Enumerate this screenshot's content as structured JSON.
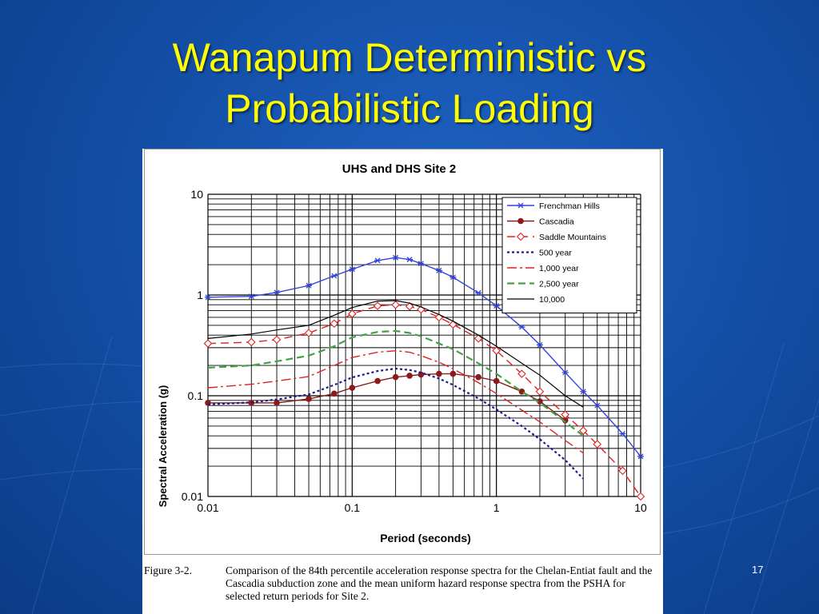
{
  "slide": {
    "title_line1": "Wanapum Deterministic vs",
    "title_line2": "Probabilistic Loading",
    "page_number": "17"
  },
  "figure": {
    "label": "Figure 3-2.",
    "caption": "Comparison of the 84th percentile acceleration response spectra for the Chelan-Entiat fault and the Cascadia subduction zone and the mean uniform hazard response spectra from the PSHA for selected return periods for Site 2."
  },
  "colors": {
    "background": "#1450a8",
    "title": "#ffff00"
  },
  "chart_data": {
    "type": "line",
    "title": "UHS and DHS Site 2",
    "xlabel": "Period (seconds)",
    "ylabel": "Spectral Acceleration (g)",
    "xscale": "log",
    "yscale": "log",
    "xlim": [
      0.01,
      10
    ],
    "ylim": [
      0.01,
      10
    ],
    "xticks": [
      "0.01",
      "0.1",
      "1",
      "10"
    ],
    "yticks": [
      "0.01",
      "0.1",
      "1",
      "10"
    ],
    "grid": true,
    "legend_position": "top-right",
    "series": [
      {
        "name": "Frenchman Hills",
        "color": "#3344dd",
        "dash": "",
        "marker": "star",
        "width": 1.4,
        "x": [
          0.01,
          0.02,
          0.03,
          0.05,
          0.075,
          0.1,
          0.15,
          0.2,
          0.25,
          0.3,
          0.4,
          0.5,
          0.75,
          1,
          1.5,
          2,
          3,
          4,
          5,
          7.5,
          10
        ],
        "y": [
          0.95,
          0.97,
          1.06,
          1.24,
          1.55,
          1.8,
          2.2,
          2.35,
          2.25,
          2.05,
          1.75,
          1.5,
          1.05,
          0.78,
          0.48,
          0.32,
          0.17,
          0.11,
          0.08,
          0.042,
          0.025
        ]
      },
      {
        "name": "Cascadia",
        "color": "#8b1a1a",
        "dash": "",
        "marker": "dot",
        "width": 1.4,
        "x": [
          0.01,
          0.02,
          0.03,
          0.05,
          0.075,
          0.1,
          0.15,
          0.2,
          0.25,
          0.3,
          0.4,
          0.5,
          0.75,
          1,
          1.5,
          2,
          3
        ],
        "y": [
          0.085,
          0.085,
          0.085,
          0.093,
          0.105,
          0.12,
          0.14,
          0.153,
          0.158,
          0.162,
          0.165,
          0.165,
          0.153,
          0.14,
          0.11,
          0.088,
          0.057
        ]
      },
      {
        "name": "Saddle Mountains",
        "color": "#e02020",
        "dash": "10,6",
        "marker": "diamond",
        "width": 1.4,
        "x": [
          0.01,
          0.02,
          0.03,
          0.05,
          0.075,
          0.1,
          0.15,
          0.2,
          0.25,
          0.3,
          0.4,
          0.5,
          0.75,
          1,
          1.5,
          2,
          3,
          4,
          5,
          7.5,
          10
        ],
        "y": [
          0.33,
          0.34,
          0.36,
          0.42,
          0.52,
          0.65,
          0.78,
          0.8,
          0.77,
          0.72,
          0.6,
          0.51,
          0.37,
          0.28,
          0.165,
          0.11,
          0.065,
          0.045,
          0.033,
          0.018,
          0.01
        ]
      },
      {
        "name": "500 year",
        "color": "#1a1a8c",
        "dash": "3,3",
        "marker": "none",
        "width": 2.2,
        "x": [
          0.01,
          0.02,
          0.03,
          0.05,
          0.075,
          0.1,
          0.15,
          0.2,
          0.25,
          0.3,
          0.4,
          0.5,
          0.75,
          1,
          1.5,
          2,
          3,
          4
        ],
        "y": [
          0.082,
          0.086,
          0.092,
          0.103,
          0.128,
          0.152,
          0.176,
          0.186,
          0.18,
          0.17,
          0.148,
          0.128,
          0.094,
          0.073,
          0.05,
          0.037,
          0.023,
          0.015
        ]
      },
      {
        "name": "1,000 year",
        "color": "#e02020",
        "dash": "12,4,3,4",
        "marker": "none",
        "width": 1.4,
        "x": [
          0.01,
          0.02,
          0.03,
          0.05,
          0.075,
          0.1,
          0.15,
          0.2,
          0.25,
          0.3,
          0.4,
          0.5,
          0.75,
          1,
          1.5,
          2,
          3,
          4
        ],
        "y": [
          0.12,
          0.13,
          0.14,
          0.155,
          0.2,
          0.24,
          0.27,
          0.28,
          0.27,
          0.25,
          0.215,
          0.185,
          0.135,
          0.105,
          0.072,
          0.055,
          0.036,
          0.027
        ]
      },
      {
        "name": "2,500 year",
        "color": "#44a044",
        "dash": "9,5",
        "marker": "none",
        "width": 2.2,
        "x": [
          0.01,
          0.02,
          0.03,
          0.05,
          0.075,
          0.1,
          0.15,
          0.2,
          0.25,
          0.3,
          0.4,
          0.5,
          0.75,
          1,
          1.5,
          2,
          3,
          4
        ],
        "y": [
          0.19,
          0.2,
          0.22,
          0.25,
          0.31,
          0.38,
          0.43,
          0.44,
          0.42,
          0.39,
          0.33,
          0.29,
          0.21,
          0.165,
          0.11,
          0.085,
          0.055,
          0.04
        ]
      },
      {
        "name": "10,000",
        "color": "#000000",
        "dash": "",
        "marker": "none",
        "width": 1.2,
        "x": [
          0.01,
          0.02,
          0.03,
          0.05,
          0.075,
          0.1,
          0.15,
          0.2,
          0.25,
          0.3,
          0.4,
          0.5,
          0.75,
          1,
          1.5,
          2,
          3,
          4
        ],
        "y": [
          0.37,
          0.41,
          0.45,
          0.5,
          0.63,
          0.75,
          0.87,
          0.88,
          0.83,
          0.76,
          0.64,
          0.55,
          0.4,
          0.31,
          0.21,
          0.16,
          0.1,
          0.077
        ]
      }
    ]
  }
}
